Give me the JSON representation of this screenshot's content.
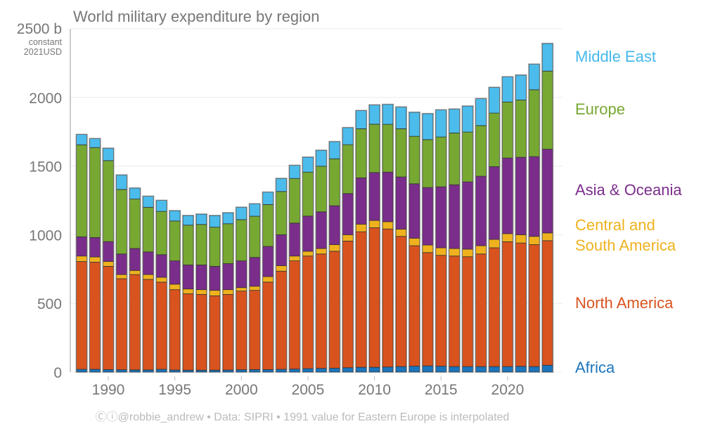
{
  "chart_data": {
    "type": "bar",
    "stacked": true,
    "title": "World military expenditure by region",
    "ylabel_top": "2500 b",
    "unit_line1": "constant",
    "unit_line2": "2021USD",
    "ylim": [
      0,
      2500
    ],
    "yticks": [
      0,
      500,
      1000,
      1500,
      2000
    ],
    "xticks": [
      1990,
      1995,
      2000,
      2005,
      2010,
      2015,
      2020
    ],
    "grid": true,
    "legend_placement": "right",
    "categories": [
      1988,
      1989,
      1990,
      1991,
      1992,
      1993,
      1994,
      1995,
      1996,
      1997,
      1998,
      1999,
      2000,
      2001,
      2002,
      2003,
      2004,
      2005,
      2006,
      2007,
      2008,
      2009,
      2010,
      2011,
      2012,
      2013,
      2014,
      2015,
      2016,
      2017,
      2018,
      2019,
      2020,
      2021,
      2022,
      2023
    ],
    "series": [
      {
        "name": "Africa",
        "color": "#1b75bc",
        "values": [
          20,
          20,
          18,
          17,
          16,
          16,
          20,
          15,
          14,
          14,
          14,
          15,
          17,
          18,
          18,
          20,
          22,
          25,
          27,
          28,
          32,
          35,
          35,
          37,
          40,
          43,
          45,
          43,
          40,
          40,
          40,
          40,
          40,
          42,
          40,
          50
        ]
      },
      {
        "name": "North America",
        "color": "#d9531e",
        "values": [
          785,
          780,
          752,
          663,
          694,
          659,
          635,
          585,
          556,
          551,
          541,
          550,
          573,
          577,
          637,
          715,
          788,
          820,
          833,
          852,
          922,
          987,
          1016,
          1005,
          948,
          877,
          825,
          807,
          805,
          800,
          820,
          865,
          909,
          898,
          888,
          907
        ]
      },
      {
        "name": "Central and South America",
        "color": "#efb21e",
        "values": [
          40,
          38,
          35,
          30,
          30,
          35,
          35,
          40,
          35,
          35,
          40,
          35,
          25,
          30,
          40,
          40,
          35,
          35,
          40,
          48,
          46,
          55,
          53,
          53,
          53,
          55,
          55,
          55,
          55,
          55,
          60,
          61,
          59,
          60,
          60,
          56
        ]
      },
      {
        "name": "Asia & Oceania",
        "color": "#7b2d8b",
        "values": [
          140,
          142,
          145,
          150,
          160,
          165,
          165,
          170,
          175,
          180,
          175,
          190,
          195,
          210,
          220,
          225,
          240,
          256,
          267,
          283,
          300,
          337,
          349,
          361,
          380,
          396,
          419,
          444,
          464,
          490,
          506,
          530,
          551,
          564,
          581,
          610
        ]
      },
      {
        "name": "Europe",
        "color": "#77a832",
        "values": [
          670,
          655,
          590,
          470,
          360,
          325,
          315,
          290,
          290,
          295,
          285,
          290,
          300,
          300,
          305,
          315,
          325,
          320,
          332,
          342,
          356,
          358,
          352,
          348,
          351,
          346,
          349,
          363,
          377,
          363,
          369,
          390,
          408,
          417,
          487,
          569
        ]
      },
      {
        "name": "Middle East",
        "color": "#4bbcec",
        "values": [
          75,
          65,
          90,
          105,
          80,
          80,
          80,
          75,
          70,
          75,
          85,
          80,
          90,
          90,
          90,
          95,
          95,
          109,
          116,
          125,
          124,
          132,
          140,
          145,
          158,
          175,
          189,
          197,
          174,
          189,
          196,
          187,
          183,
          182,
          186,
          201
        ]
      }
    ],
    "legend_labels": {
      "middle_east": "Middle East",
      "europe": "Europe",
      "asia": "Asia & Oceania",
      "csa_line1": "Central and",
      "csa_line2": "South America",
      "north_america": "North America",
      "africa": "Africa"
    },
    "footer": "Ⓒⓘ@robbie_andrew  •  Data: SIPRI  •  1991 value for Eastern Europe is interpolated"
  }
}
